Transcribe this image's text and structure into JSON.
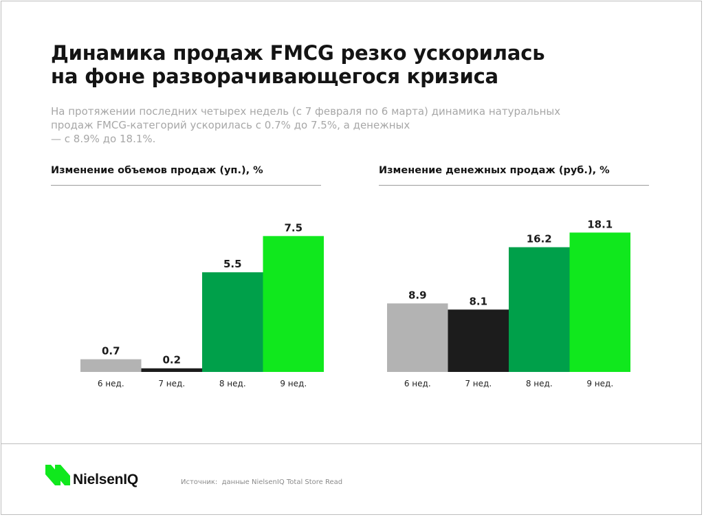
{
  "header": {
    "title_lines": [
      "Динамика продаж FMCG резко ускорилась",
      "на фоне разворачивающегося кризиса"
    ],
    "subtitle_lines": [
      "На протяжении последних четырех недель (с 7 февраля по 6 марта) динамика натуральных",
      "продаж FMCG-категорий ускорилась с 0.7% до 7.5%, а денежных",
      "— с 8.9% до 18.1%."
    ]
  },
  "chart_data": [
    {
      "type": "bar",
      "title": "Изменение объемов продаж (уп.), %",
      "categories": [
        "6 нед.",
        "7 нед.",
        "8 нед.",
        "9 нед."
      ],
      "values": [
        0.7,
        0.2,
        5.5,
        7.5
      ],
      "value_labels": [
        "0.7",
        "0.2",
        "5.5",
        "7.5"
      ],
      "colors": [
        "#b3b3b3",
        "#1c1c1c",
        "#00a04a",
        "#10e81d"
      ],
      "ylim": [
        0,
        8.5
      ],
      "grid": false,
      "legend": "none"
    },
    {
      "type": "bar",
      "title": "Изменение денежных продаж (руб.), %",
      "categories": [
        "6 нед.",
        "7 нед.",
        "8 нед.",
        "9 нед."
      ],
      "values": [
        8.9,
        8.1,
        16.2,
        18.1
      ],
      "value_labels": [
        "8.9",
        "8.1",
        "16.2",
        "18.1"
      ],
      "colors": [
        "#b3b3b3",
        "#1c1c1c",
        "#00a04a",
        "#10e81d"
      ],
      "ylim": [
        0,
        20
      ],
      "grid": false,
      "legend": "none"
    }
  ],
  "footer": {
    "brand": "NielsenIQ",
    "source": "Источник:  данные NielsenIQ Total Store Read",
    "brand_color": "#10e81d"
  }
}
